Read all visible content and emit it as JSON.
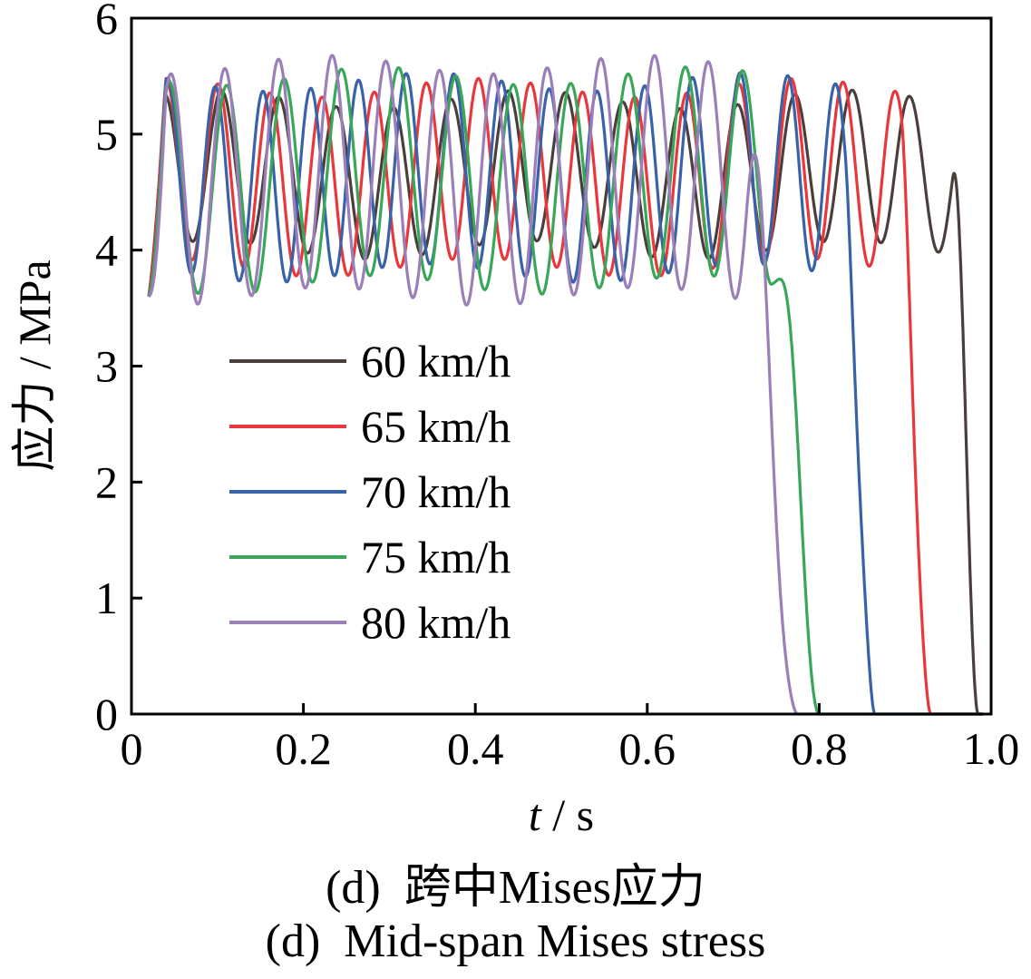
{
  "chart_data": {
    "type": "line",
    "xlabel_var": "t",
    "xlabel_unit": " / s",
    "ylabel": "应力 / MPa",
    "xlim": [
      0,
      1.0
    ],
    "ylim": [
      0,
      6
    ],
    "x_ticks": [
      "0",
      "0.2",
      "0.4",
      "0.6",
      "0.8",
      "1.0"
    ],
    "y_ticks": [
      "0",
      "1",
      "2",
      "3",
      "4",
      "5",
      "6"
    ],
    "legend_position": "center-left",
    "series": [
      {
        "name": "60 km/h",
        "color": "#4a3f3c",
        "start": 0.02,
        "end": 0.99,
        "osc": {
          "period": 0.0667,
          "phase0": 0.038,
          "max": 5.3,
          "min": 4.0
        },
        "drop": {
          "t_start": 0.955,
          "t_end": 0.985
        }
      },
      {
        "name": "65 km/h",
        "color": "#e8383d",
        "start": 0.02,
        "end": 0.99,
        "osc": {
          "period": 0.0606,
          "phase0": 0.04,
          "max": 5.4,
          "min": 3.85
        },
        "drop": {
          "t_start": 0.895,
          "t_end": 0.93
        }
      },
      {
        "name": "70 km/h",
        "color": "#3a62a8",
        "start": 0.02,
        "end": 0.99,
        "osc": {
          "period": 0.0555,
          "phase0": 0.042,
          "max": 5.45,
          "min": 3.8
        },
        "drop": {
          "t_start": 0.83,
          "t_end": 0.865
        }
      },
      {
        "name": "75 km/h",
        "color": "#3aa65a",
        "start": 0.02,
        "end": 0.99,
        "osc": {
          "period": 0.0667,
          "phase0": 0.044,
          "max": 5.5,
          "min": 3.7
        },
        "drop": {
          "t_start": 0.745,
          "t_end": 0.8
        }
      },
      {
        "name": "80 km/h",
        "color": "#9a7fb8",
        "start": 0.02,
        "end": 0.99,
        "osc": {
          "period": 0.0625,
          "phase0": 0.046,
          "max": 5.6,
          "min": 3.6
        },
        "drop": {
          "t_start": 0.715,
          "t_end": 0.775
        }
      }
    ]
  },
  "caption": {
    "zh": "(d)  跨中Mises应力",
    "en": "(d)  Mid-span Mises stress"
  }
}
